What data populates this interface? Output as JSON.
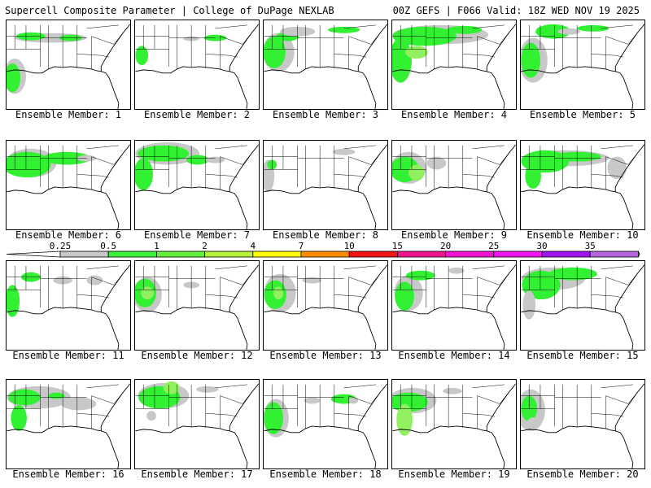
{
  "header": {
    "left_title": "Supercell Composite Parameter | College of DuPage NEXLAB",
    "right_title": "00Z GEFS | F066 Valid: 18Z WED NOV 19 2025"
  },
  "colorbar": {
    "labels": [
      "0.25",
      "0.5",
      "1",
      "2",
      "4",
      "7",
      "10",
      "15",
      "20",
      "25",
      "30",
      "35"
    ],
    "colors": [
      "#c8c8c8",
      "#3cf03c",
      "#64f03c",
      "#b4f03c",
      "#ffff00",
      "#ff8c00",
      "#f01414",
      "#f0148c",
      "#f014d2",
      "#f014f0",
      "#a014f0",
      "#b464dc",
      "#1ef0f0"
    ]
  },
  "panels": [
    {
      "label": "Ensemble Member: 1",
      "member": 1
    },
    {
      "label": "Ensemble Member: 2",
      "member": 2
    },
    {
      "label": "Ensemble Member: 3",
      "member": 3
    },
    {
      "label": "Ensemble Member: 4",
      "member": 4
    },
    {
      "label": "Ensemble Member: 5",
      "member": 5
    },
    {
      "label": "Ensemble Member: 6",
      "member": 6
    },
    {
      "label": "Ensemble Member: 7",
      "member": 7
    },
    {
      "label": "Ensemble Member: 8",
      "member": 8
    },
    {
      "label": "Ensemble Member: 9",
      "member": 9
    },
    {
      "label": "Ensemble Member: 10",
      "member": 10
    },
    {
      "label": "Ensemble Member: 11",
      "member": 11
    },
    {
      "label": "Ensemble Member: 12",
      "member": 12
    },
    {
      "label": "Ensemble Member: 13",
      "member": 13
    },
    {
      "label": "Ensemble Member: 14",
      "member": 14
    },
    {
      "label": "Ensemble Member: 15",
      "member": 15
    },
    {
      "label": "Ensemble Member: 16",
      "member": 16
    },
    {
      "label": "Ensemble Member: 17",
      "member": 17
    },
    {
      "label": "Ensemble Member: 18",
      "member": 18
    },
    {
      "label": "Ensemble Member: 19",
      "member": 19
    },
    {
      "label": "Ensemble Member: 20",
      "member": 20
    }
  ]
}
